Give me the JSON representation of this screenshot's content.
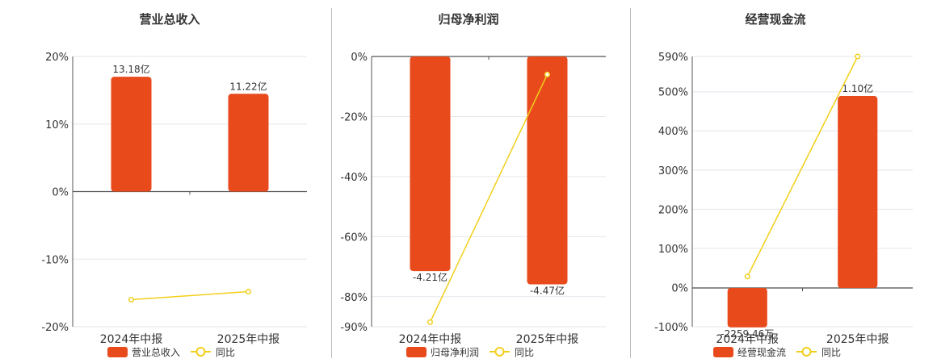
{
  "chart_data": [
    {
      "type": "bar",
      "title": "营业总收入",
      "categories": [
        "2024年中报",
        "2025年中报"
      ],
      "series": [
        {
          "name": "营业总收入",
          "kind": "bar",
          "axis": "hidden",
          "values": [
            13.18,
            11.22
          ],
          "labels": [
            "13.18亿",
            "11.22亿"
          ],
          "color": "#e84a1c"
        },
        {
          "name": "同比",
          "kind": "line",
          "axis": "left",
          "values": [
            -16.0,
            -14.8
          ],
          "color": "#f2cf1c"
        }
      ],
      "yaxis": {
        "ticks": [
          20,
          10,
          0,
          -10,
          -20
        ],
        "tick_labels": [
          "20%",
          "10%",
          "0%",
          "-10%",
          "-20%"
        ],
        "range": [
          -20,
          20
        ]
      },
      "bar_axis": {
        "range": [
          -15.5,
          15.5
        ]
      },
      "legend": [
        "营业总收入",
        "同比"
      ],
      "legend_position": "bottom-center",
      "grid": true
    },
    {
      "type": "bar",
      "title": "归母净利润",
      "categories": [
        "2024年中报",
        "2025年中报"
      ],
      "series": [
        {
          "name": "归母净利润",
          "kind": "bar",
          "axis": "hidden",
          "values": [
            -4.21,
            -4.47
          ],
          "labels": [
            "-4.21亿",
            "-4.47亿"
          ],
          "color": "#e84a1c"
        },
        {
          "name": "同比",
          "kind": "line",
          "axis": "left",
          "values": [
            -88.5,
            -6.0
          ],
          "color": "#f2cf1c"
        }
      ],
      "yaxis": {
        "ticks": [
          0,
          -20,
          -40,
          -60,
          -80,
          -90
        ],
        "tick_labels": [
          "0%",
          "-20%",
          "-40%",
          "-60%",
          "-80%",
          "-90%"
        ],
        "range": [
          -90,
          0
        ]
      },
      "bar_axis": {
        "range": [
          -5.3,
          0
        ]
      },
      "legend": [
        "归母净利润",
        "同比"
      ],
      "legend_position": "bottom-center",
      "grid": true
    },
    {
      "type": "bar",
      "title": "经营现金流",
      "categories": [
        "2024年中报",
        "2025年中报"
      ],
      "series": [
        {
          "name": "经营现金流",
          "kind": "bar",
          "axis": "hidden",
          "values": [
            -0.2259,
            1.1
          ],
          "labels": [
            "-2259.46万",
            "1.10亿"
          ],
          "color": "#e84a1c"
        },
        {
          "name": "同比",
          "kind": "line",
          "axis": "left",
          "values": [
            28,
            590
          ],
          "color": "#f2cf1c"
        }
      ],
      "yaxis": {
        "ticks": [
          590,
          500,
          400,
          300,
          200,
          100,
          0,
          -100
        ],
        "tick_labels": [
          "590%",
          "500%",
          "400%",
          "300%",
          "200%",
          "100%",
          "0%",
          "-100%"
        ],
        "range": [
          -100,
          590
        ]
      },
      "bar_axis": {
        "range": [
          -0.2218,
          1.3266
        ]
      },
      "legend": [
        "经营现金流",
        "同比"
      ],
      "legend_position": "bottom-center",
      "grid": true
    }
  ]
}
